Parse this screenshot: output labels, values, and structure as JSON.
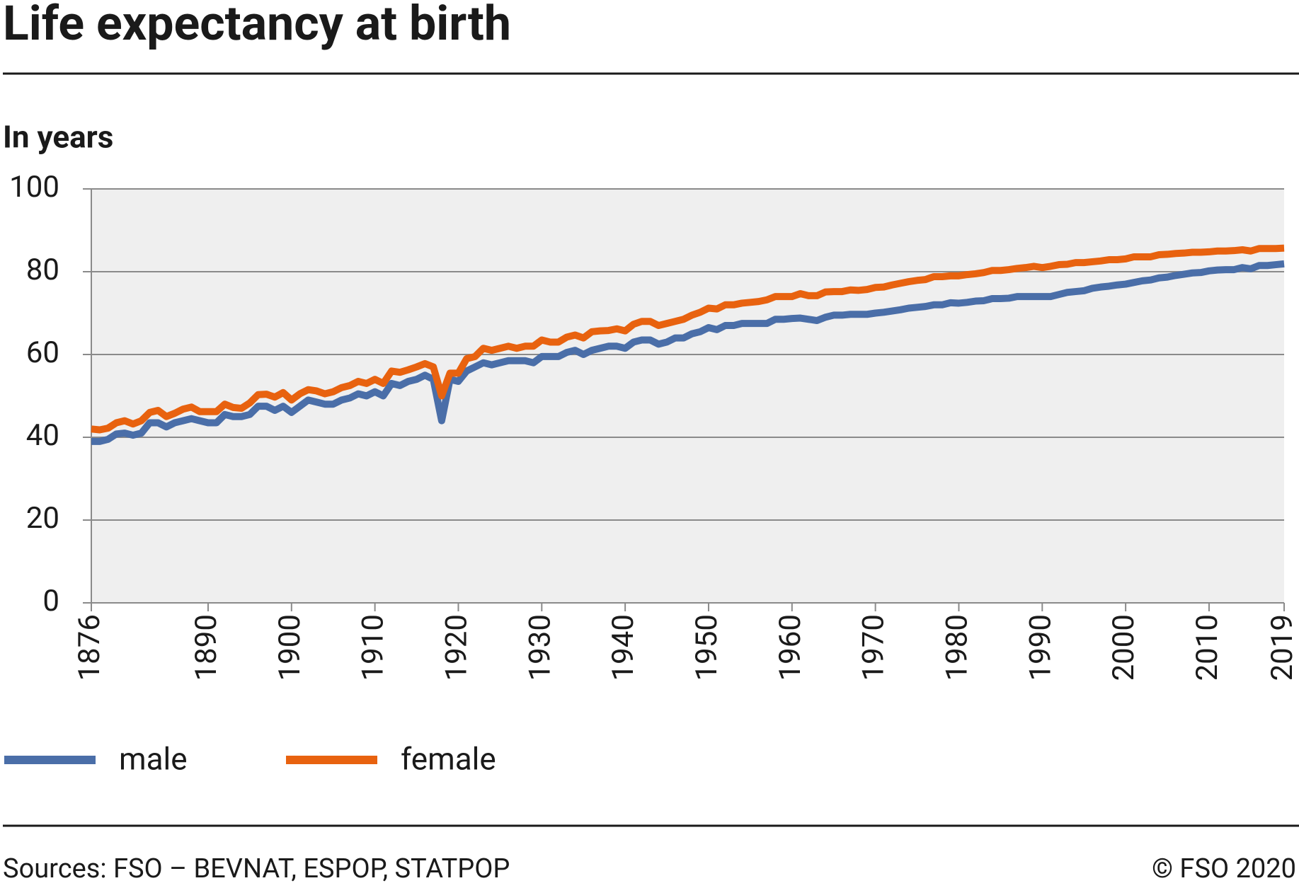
{
  "chart_data": {
    "type": "line",
    "title": "Life expectancy at birth",
    "y_label": "In years",
    "source": "Sources: FSO – BEVNAT, ESPOP, STATPOP",
    "copyright": "© FSO 2020",
    "x": [
      1876,
      1877,
      1878,
      1879,
      1880,
      1881,
      1882,
      1883,
      1884,
      1885,
      1886,
      1887,
      1888,
      1889,
      1890,
      1891,
      1892,
      1893,
      1894,
      1895,
      1896,
      1897,
      1898,
      1899,
      1900,
      1901,
      1902,
      1903,
      1904,
      1905,
      1906,
      1907,
      1908,
      1909,
      1910,
      1911,
      1912,
      1913,
      1914,
      1915,
      1916,
      1917,
      1918,
      1919,
      1920,
      1921,
      1922,
      1923,
      1924,
      1925,
      1926,
      1927,
      1928,
      1929,
      1930,
      1931,
      1932,
      1933,
      1934,
      1935,
      1936,
      1937,
      1938,
      1939,
      1940,
      1941,
      1942,
      1943,
      1944,
      1945,
      1946,
      1947,
      1948,
      1949,
      1950,
      1951,
      1952,
      1953,
      1954,
      1955,
      1956,
      1957,
      1958,
      1959,
      1960,
      1961,
      1962,
      1963,
      1964,
      1965,
      1966,
      1967,
      1968,
      1969,
      1970,
      1971,
      1972,
      1973,
      1974,
      1975,
      1976,
      1977,
      1978,
      1979,
      1980,
      1981,
      1982,
      1983,
      1984,
      1985,
      1986,
      1987,
      1988,
      1989,
      1990,
      1991,
      1992,
      1993,
      1994,
      1995,
      1996,
      1997,
      1998,
      1999,
      2000,
      2001,
      2002,
      2003,
      2004,
      2005,
      2006,
      2007,
      2008,
      2009,
      2010,
      2011,
      2012,
      2013,
      2014,
      2015,
      2016,
      2017,
      2018,
      2019
    ],
    "series": [
      {
        "name": "male",
        "color": "#4a6ea8",
        "values": [
          39,
          39,
          39.5,
          40.8,
          41,
          40.5,
          41,
          43.5,
          43.5,
          42.5,
          43.5,
          44,
          44.5,
          44,
          43.5,
          43.5,
          45.5,
          45,
          45,
          45.5,
          47.5,
          47.5,
          46.5,
          47.5,
          46,
          47.5,
          49,
          48.5,
          48,
          48,
          49,
          49.5,
          50.5,
          50,
          51,
          50,
          53,
          52.5,
          53.5,
          54,
          55,
          54,
          44,
          54,
          53.5,
          56,
          57,
          58,
          57.5,
          58,
          58.5,
          58.5,
          58.5,
          58,
          59.5,
          59.5,
          59.5,
          60.5,
          61,
          60,
          61,
          61.5,
          62,
          62,
          61.5,
          63,
          63.5,
          63.5,
          62.5,
          63,
          64,
          64,
          65,
          65.5,
          66.5,
          66,
          67,
          67,
          67.5,
          67.5,
          67.5,
          67.5,
          68.5,
          68.5,
          68.7,
          68.8,
          68.5,
          68.2,
          69,
          69.5,
          69.5,
          69.7,
          69.7,
          69.7,
          70,
          70.2,
          70.5,
          70.8,
          71.2,
          71.4,
          71.6,
          72,
          72,
          72.5,
          72.4,
          72.6,
          72.9,
          73,
          73.5,
          73.5,
          73.6,
          74,
          74,
          74,
          74,
          74,
          74.5,
          75,
          75.2,
          75.4,
          76,
          76.3,
          76.5,
          76.8,
          77,
          77.4,
          77.8,
          78,
          78.5,
          78.7,
          79.1,
          79.4,
          79.7,
          79.8,
          80.2,
          80.4,
          80.5,
          80.5,
          81,
          80.7,
          81.5,
          81.5,
          81.7,
          81.9
        ]
      },
      {
        "name": "female",
        "color": "#e8620f",
        "values": [
          42,
          41.8,
          42.2,
          43.5,
          44,
          43.2,
          44,
          46,
          46.5,
          45,
          45.8,
          46.8,
          47.3,
          46.2,
          46.2,
          46.2,
          48,
          47.2,
          47,
          48.3,
          50.3,
          50.4,
          49.7,
          50.8,
          49,
          50.5,
          51.5,
          51.2,
          50.5,
          51,
          52,
          52.5,
          53.5,
          53,
          54,
          53,
          56,
          55.7,
          56.3,
          57,
          57.8,
          57,
          50,
          55.5,
          55.5,
          59,
          59.5,
          61.5,
          61,
          61.5,
          62,
          61.5,
          62,
          62,
          63.5,
          63,
          63,
          64.2,
          64.7,
          64,
          65.5,
          65.7,
          65.8,
          66.2,
          65.7,
          67.3,
          68,
          68,
          67,
          67.5,
          68,
          68.5,
          69.5,
          70.2,
          71.2,
          71,
          72,
          72,
          72.4,
          72.6,
          72.8,
          73.2,
          74,
          74,
          74,
          74.7,
          74.2,
          74.2,
          75.1,
          75.2,
          75.2,
          75.6,
          75.5,
          75.7,
          76.2,
          76.3,
          76.8,
          77.2,
          77.6,
          77.9,
          78.1,
          78.8,
          78.8,
          79,
          79,
          79.3,
          79.5,
          79.8,
          80.3,
          80.3,
          80.5,
          80.8,
          81,
          81.3,
          81,
          81.3,
          81.7,
          81.8,
          82.2,
          82.2,
          82.4,
          82.6,
          82.9,
          82.9,
          83.1,
          83.6,
          83.6,
          83.6,
          84.1,
          84.2,
          84.4,
          84.5,
          84.7,
          84.7,
          84.8,
          85,
          85,
          85.1,
          85.3,
          85,
          85.6,
          85.6,
          85.6,
          85.7
        ]
      }
    ],
    "xlim": [
      1876,
      2019
    ],
    "xticks": [
      1876,
      1890,
      1900,
      1910,
      1920,
      1930,
      1940,
      1950,
      1960,
      1970,
      1980,
      1990,
      2000,
      2010,
      2019
    ],
    "ylim": [
      0,
      100
    ],
    "yticks": [
      0,
      20,
      40,
      60,
      80,
      100
    ],
    "grid": true
  }
}
